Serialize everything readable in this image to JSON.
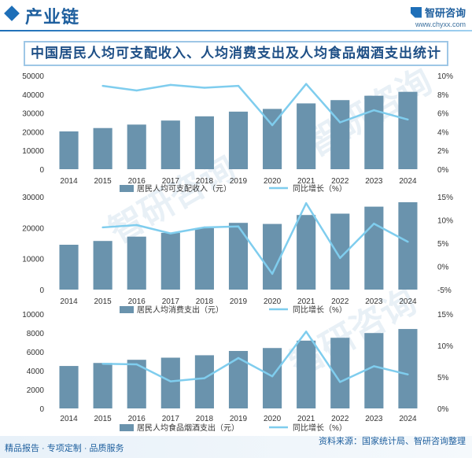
{
  "header": {
    "section_title": "产业链"
  },
  "logo": {
    "name": "智研咨询",
    "url": "www.chyxx.com"
  },
  "main_title": "中国居民人均可支配收入、人均消费支出及人均食品烟酒支出统计",
  "footer": {
    "left": "精品报告 · 专项定制 · 品质服务",
    "source": "资料来源：国家统计局、智研咨询整理"
  },
  "watermark": {
    "text": "智研咨询"
  },
  "colors": {
    "bar": "#6a93ad",
    "line": "#7fcdee",
    "title": "#1e4f86",
    "accent": "#1e6fb8"
  },
  "chart_data": [
    {
      "type": "bar",
      "categories": [
        "2014",
        "2015",
        "2016",
        "2017",
        "2018",
        "2019",
        "2020",
        "2021",
        "2022",
        "2023",
        "2024"
      ],
      "series": [
        {
          "name": "居民人均可支配收入（元）",
          "type": "bar",
          "axis": "left",
          "values": [
            20167,
            21966,
            23821,
            25974,
            28228,
            30733,
            32189,
            35128,
            36883,
            39218,
            41314
          ]
        },
        {
          "name": "同比增长（%）",
          "type": "line",
          "axis": "right",
          "values": [
            null,
            8.9,
            8.4,
            9.0,
            8.7,
            8.9,
            4.7,
            9.1,
            5.0,
            6.3,
            5.3
          ]
        }
      ],
      "y_left": {
        "min": 0,
        "max": 50000,
        "ticks": [
          "0",
          "10000",
          "20000",
          "30000",
          "40000",
          "50000"
        ]
      },
      "y_right": {
        "min": 0,
        "max": 10,
        "ticks": [
          "0%",
          "2%",
          "4%",
          "6%",
          "8%",
          "10%"
        ]
      }
    },
    {
      "type": "bar",
      "categories": [
        "2014",
        "2015",
        "2016",
        "2017",
        "2018",
        "2019",
        "2020",
        "2021",
        "2022",
        "2023",
        "2024"
      ],
      "series": [
        {
          "name": "居民人均消费支出（元）",
          "type": "bar",
          "axis": "left",
          "values": [
            14491,
            15712,
            17111,
            18322,
            19853,
            21559,
            21210,
            24100,
            24538,
            26796,
            28227
          ]
        },
        {
          "name": "同比增长（%）",
          "type": "line",
          "axis": "right",
          "values": [
            null,
            8.4,
            8.9,
            7.1,
            8.4,
            8.6,
            -1.6,
            13.6,
            1.8,
            9.2,
            5.3
          ]
        }
      ],
      "y_left": {
        "min": 0,
        "max": 30000,
        "ticks": [
          "0",
          "10000",
          "20000",
          "30000"
        ]
      },
      "y_right": {
        "min": -5,
        "max": 15,
        "ticks": [
          "-5%",
          "0%",
          "5%",
          "10%",
          "15%"
        ]
      }
    },
    {
      "type": "bar",
      "categories": [
        "2014",
        "2015",
        "2016",
        "2017",
        "2018",
        "2019",
        "2020",
        "2021",
        "2022",
        "2023",
        "2024"
      ],
      "series": [
        {
          "name": "居民人均食品烟酒支出（元）",
          "type": "bar",
          "axis": "left",
          "values": [
            4494,
            4814,
            5151,
            5374,
            5631,
            6084,
            6397,
            7178,
            7481,
            7983,
            8411
          ]
        },
        {
          "name": "同比增长（%）",
          "type": "line",
          "axis": "right",
          "values": [
            null,
            7.1,
            7.0,
            4.3,
            4.8,
            8.0,
            5.1,
            12.2,
            4.2,
            6.7,
            5.4
          ]
        }
      ],
      "y_left": {
        "min": 0,
        "max": 10000,
        "ticks": [
          "0",
          "2000",
          "4000",
          "6000",
          "8000",
          "10000"
        ]
      },
      "y_right": {
        "min": 0,
        "max": 15,
        "ticks": [
          "0%",
          "5%",
          "10%",
          "15%"
        ]
      }
    }
  ]
}
